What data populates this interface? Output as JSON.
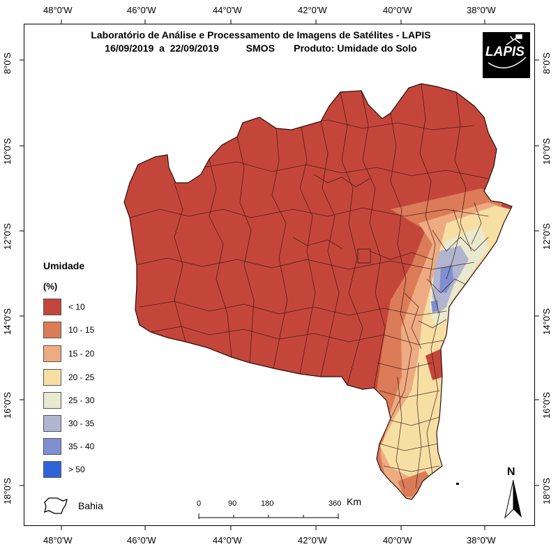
{
  "map": {
    "title_line1": "Laboratório de Análise e Processamento de Imagens de Satélites - LAPIS",
    "title_line2": "16/09/2019  a  22/09/2019          SMOS       Produto: Umidade do Solo",
    "logo_text": "LAPIS",
    "lon_labels": [
      "48°0'W",
      "46°0'W",
      "44°0'W",
      "42°0'W",
      "40°0'W",
      "38°0'W"
    ],
    "lat_labels": [
      "8°0'S",
      "10°0'S",
      "12°0'S",
      "14°0'S",
      "16°0'S",
      "18°0'S"
    ]
  },
  "legend": {
    "title": "Umidade",
    "unit": "(%)",
    "items": [
      {
        "label": "< 10",
        "color": "#c4463a"
      },
      {
        "label": "10 - 15",
        "color": "#db7b57"
      },
      {
        "label": "15 - 20",
        "color": "#eeab82"
      },
      {
        "label": "20 - 25",
        "color": "#f7dfa4"
      },
      {
        "label": "25 - 30",
        "color": "#e9e9cf"
      },
      {
        "label": "30 - 35",
        "color": "#b1b5cf"
      },
      {
        "label": "35 - 40",
        "color": "#7f8fd0"
      },
      {
        "label": "> 50",
        "color": "#2e63d8"
      }
    ]
  },
  "inset": {
    "label": "Bahia"
  },
  "scale": {
    "ticks": [
      "0",
      "90",
      "180",
      "360"
    ],
    "unit": "Km"
  },
  "north": {
    "label": "N"
  }
}
